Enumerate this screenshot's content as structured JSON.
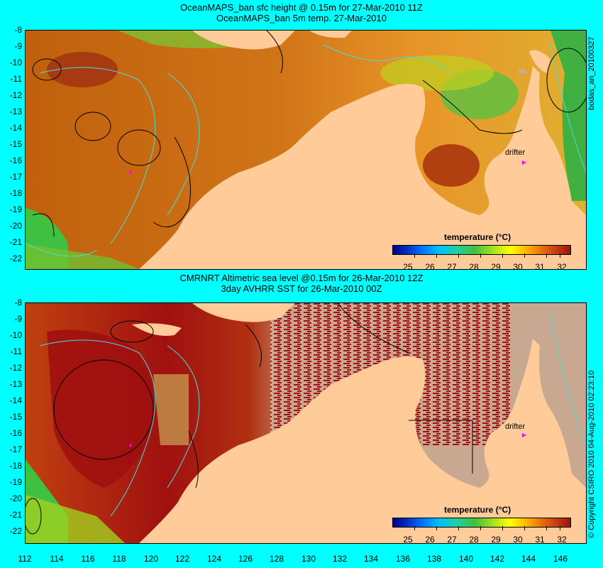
{
  "panel_top": {
    "title_line1": "OceanMAPS_ban sfc height @ 0.15m for 27-Mar-2010 11Z",
    "title_line2": "OceanMAPS_ban 5m temp. 27-Mar-2010",
    "side_label": "bodas_an_20100327",
    "drifter_label": "drifter",
    "colorbar_title": "temperature (°C)"
  },
  "panel_bottom": {
    "title_line1": "CMRNRT Altimetric sea level  @0.15m  for 26-Mar-2010 12Z",
    "title_line2": "3day AVHRR SST for 26-Mar-2010 00Z",
    "side_label": "© Copyright CSIRO 2010   04-Aug-2010 02:23:10",
    "drifter_label": "drifter",
    "colorbar_title": "temperature (°C)"
  },
  "colorbar_ticks": [
    "25",
    "26",
    "27",
    "28",
    "29",
    "30",
    "31",
    "32"
  ],
  "y_ticks": [
    "-8",
    "-9",
    "-10",
    "-11",
    "-12",
    "-13",
    "-14",
    "-15",
    "-16",
    "-17",
    "-18",
    "-19",
    "-20",
    "-21",
    "-22"
  ],
  "x_ticks": [
    "112",
    "114",
    "116",
    "118",
    "120",
    "122",
    "124",
    "126",
    "128",
    "130",
    "132",
    "134",
    "136",
    "138",
    "140",
    "142",
    "144",
    "146"
  ],
  "colors": {
    "background": "#00ffff",
    "land": "#ffcc99",
    "warm_ocean": "#c86414",
    "hot_ocean": "#a01010",
    "no_data": "#c8a890",
    "cool_ocean": "#40c040",
    "isobath": "#40e0e0",
    "drifter": "#ff00ff"
  }
}
